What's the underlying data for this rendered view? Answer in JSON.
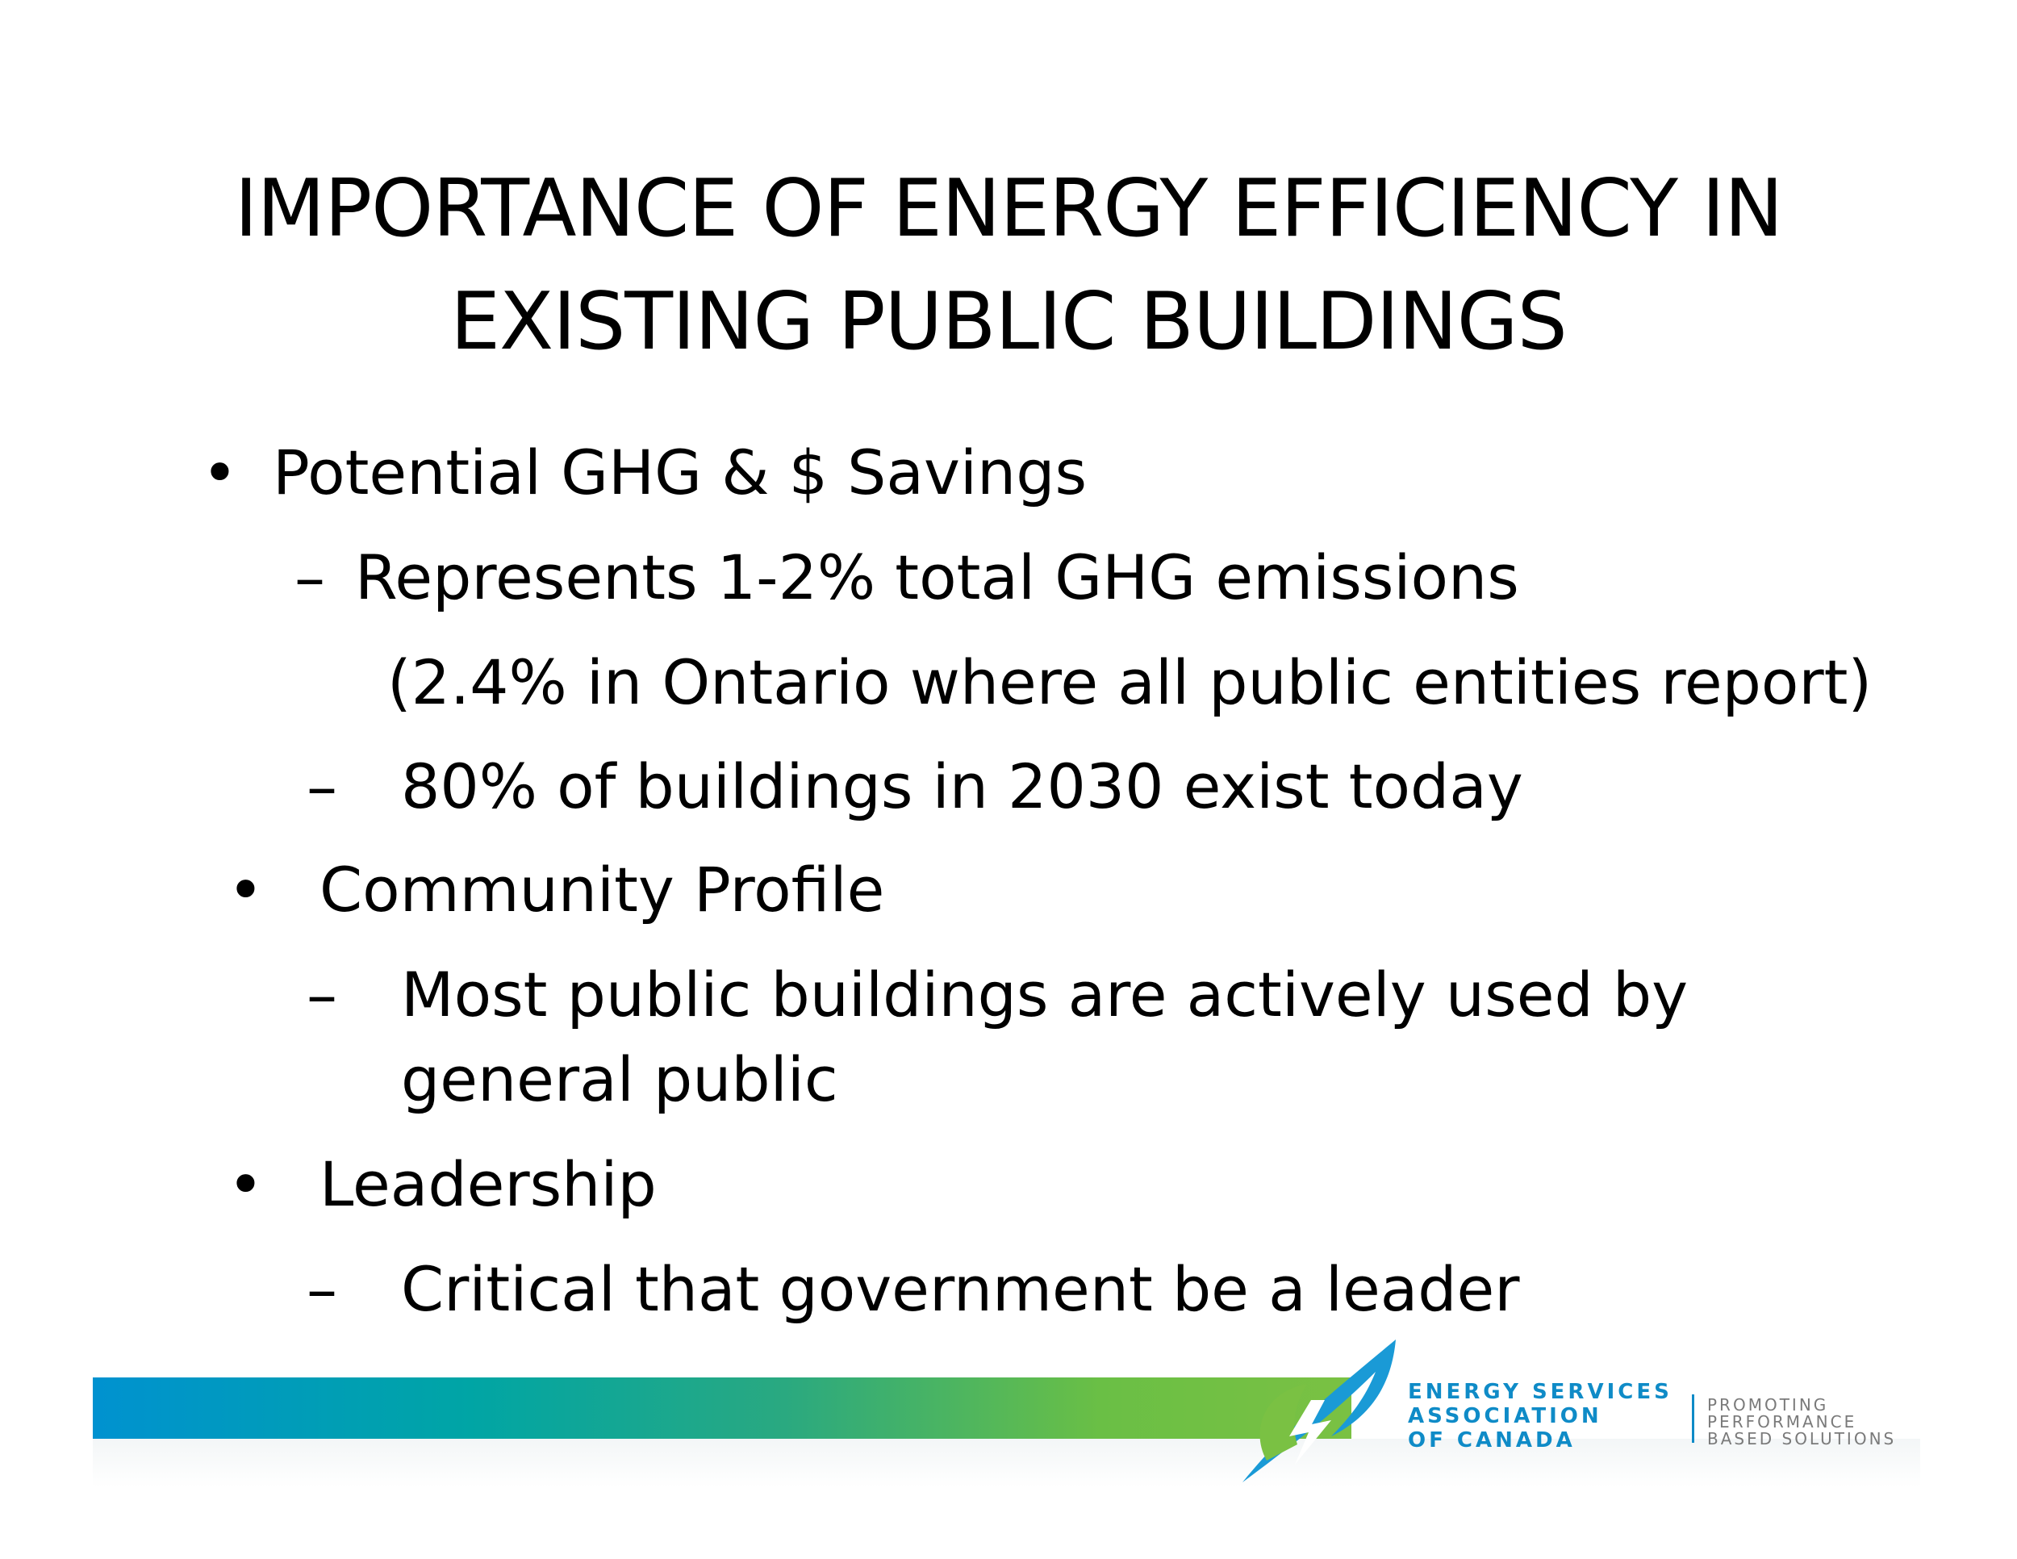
{
  "slide": {
    "title_line1": "IMPORTANCE OF ENERGY EFFICIENCY IN",
    "title_line2": "EXISTING PUBLIC BUILDINGS",
    "bullet_symbol": "•",
    "dash_symbol": "–",
    "items": [
      {
        "label": "Potential GHG & $ Savings"
      },
      {
        "label": "Represents 1-2% total GHG emissions"
      },
      {
        "label": "(2.4% in Ontario where all public entities report)"
      },
      {
        "label": "80% of buildings in 2030 exist today"
      },
      {
        "label": "Community Profile"
      },
      {
        "label": "Most public buildings are actively used by"
      },
      {
        "label": "general public"
      },
      {
        "label": "Leadership"
      },
      {
        "label": "Critical that government be a leader"
      }
    ]
  },
  "footer": {
    "org_line1": "ENERGY SERVICES",
    "org_line2": "ASSOCIATION",
    "org_line3": "OF CANADA",
    "tagline1": "PROMOTING",
    "tagline2": "PERFORMANCE",
    "tagline3": "BASED SOLUTIONS",
    "colors": {
      "band_start": "#0092d0",
      "band_mid": "#00a5a5",
      "band_end": "#7ac143",
      "logo_blue": "#1a9ad6",
      "logo_green": "#7ac143",
      "org_text": "#0f8bc7",
      "tagline_text": "#7a7a7a"
    },
    "logo_icon": "leaf-lightning-logo-icon"
  }
}
